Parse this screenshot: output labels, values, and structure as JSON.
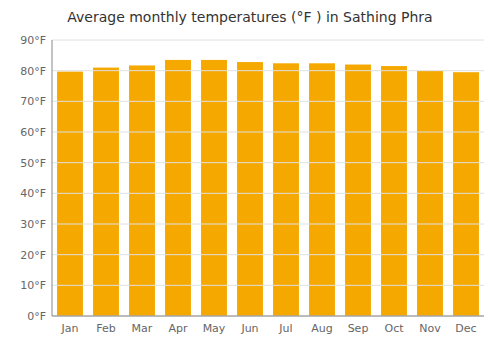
{
  "chart_data": {
    "type": "bar",
    "title": "Average monthly temperatures (°F ) in Sathing Phra",
    "categories": [
      "Jan",
      "Feb",
      "Mar",
      "Apr",
      "May",
      "Jun",
      "Jul",
      "Aug",
      "Sep",
      "Oct",
      "Nov",
      "Dec"
    ],
    "values": [
      79.7,
      81.0,
      81.7,
      83.5,
      83.5,
      82.8,
      82.4,
      82.4,
      82.0,
      81.5,
      79.9,
      79.5
    ],
    "color": "#F5A800",
    "ylim": [
      0,
      90
    ],
    "yticks": [
      {
        "value": 0,
        "label": "0°F"
      },
      {
        "value": 10,
        "label": "10°F"
      },
      {
        "value": 20,
        "label": "20°F"
      },
      {
        "value": 30,
        "label": "30°F"
      },
      {
        "value": 40,
        "label": "40°F"
      },
      {
        "value": 50,
        "label": "50°F"
      },
      {
        "value": 60,
        "label": "60°F"
      },
      {
        "value": 70,
        "label": "70°F"
      },
      {
        "value": 80,
        "label": "80°F"
      },
      {
        "value": 90,
        "label": "90°F"
      }
    ],
    "grid": true
  }
}
